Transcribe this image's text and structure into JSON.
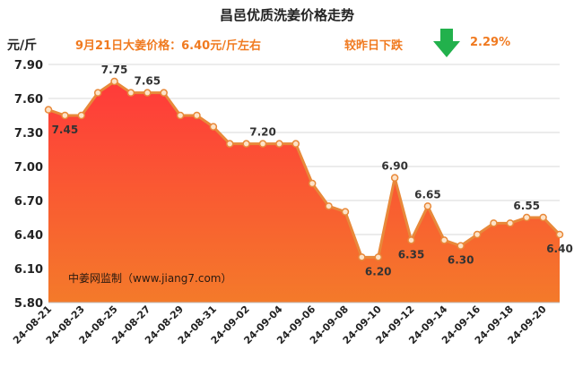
{
  "header": {
    "title": "昌邑优质洗姜价格走势",
    "unit": "元/斤",
    "today_price": "9月21日大姜价格：6.40元/斤左右",
    "change_label": "较昨日下跌",
    "change_pct": "2.29%",
    "arrow_icon": "down-arrow-icon",
    "watermark": "中姜网监制（www.jiang7.com）"
  },
  "colors": {
    "fill_top": "#ff3a3a",
    "fill_bottom": "#f47a2a",
    "line": "#e8893a",
    "marker_fill": "#fde3c8",
    "label": "#333333",
    "accent_text": "#f07a20",
    "arrow": "#22b14c"
  },
  "chart_data": {
    "type": "area",
    "title": "昌邑优质洗姜价格走势",
    "ylabel": "元/斤",
    "ylim": [
      5.8,
      7.9
    ],
    "yticks": [
      "5.80",
      "6.10",
      "6.40",
      "6.70",
      "7.00",
      "7.30",
      "7.60",
      "7.90"
    ],
    "grid": true,
    "x": [
      "24-08-21",
      "24-08-22",
      "24-08-23",
      "24-08-24",
      "24-08-25",
      "24-08-26",
      "24-08-27",
      "24-08-28",
      "24-08-29",
      "24-08-30",
      "24-08-31",
      "24-09-01",
      "24-09-02",
      "24-09-03",
      "24-09-04",
      "24-09-05",
      "24-09-06",
      "24-09-07",
      "24-09-08",
      "24-09-09",
      "24-09-10",
      "24-09-11",
      "24-09-12",
      "24-09-13",
      "24-09-14",
      "24-09-15",
      "24-09-16",
      "24-09-17",
      "24-09-18",
      "24-09-19",
      "24-09-20",
      "24-09-21"
    ],
    "xtick_labels": [
      "24-08-21",
      "24-08-23",
      "24-08-25",
      "24-08-27",
      "24-08-29",
      "24-08-31",
      "24-09-02",
      "24-09-04",
      "24-09-06",
      "24-09-08",
      "24-09-10",
      "24-09-12",
      "24-09-14",
      "24-09-16",
      "24-09-18",
      "24-09-20"
    ],
    "values": [
      7.5,
      7.45,
      7.45,
      7.65,
      7.75,
      7.65,
      7.65,
      7.65,
      7.45,
      7.45,
      7.35,
      7.2,
      7.2,
      7.2,
      7.2,
      7.2,
      6.85,
      6.65,
      6.6,
      6.2,
      6.2,
      6.9,
      6.35,
      6.65,
      6.35,
      6.3,
      6.4,
      6.5,
      6.5,
      6.55,
      6.55,
      6.4
    ],
    "data_labels": [
      {
        "index": 1,
        "text": "7.45",
        "pos": "below"
      },
      {
        "index": 4,
        "text": "7.75",
        "pos": "above"
      },
      {
        "index": 6,
        "text": "7.65",
        "pos": "above"
      },
      {
        "index": 13,
        "text": "7.20",
        "pos": "above"
      },
      {
        "index": 20,
        "text": "6.20",
        "pos": "below"
      },
      {
        "index": 21,
        "text": "6.90",
        "pos": "above"
      },
      {
        "index": 22,
        "text": "6.35",
        "pos": "below"
      },
      {
        "index": 23,
        "text": "6.65",
        "pos": "above"
      },
      {
        "index": 25,
        "text": "6.30",
        "pos": "below"
      },
      {
        "index": 29,
        "text": "6.55",
        "pos": "above"
      },
      {
        "index": 31,
        "text": "6.40",
        "pos": "below"
      }
    ]
  }
}
